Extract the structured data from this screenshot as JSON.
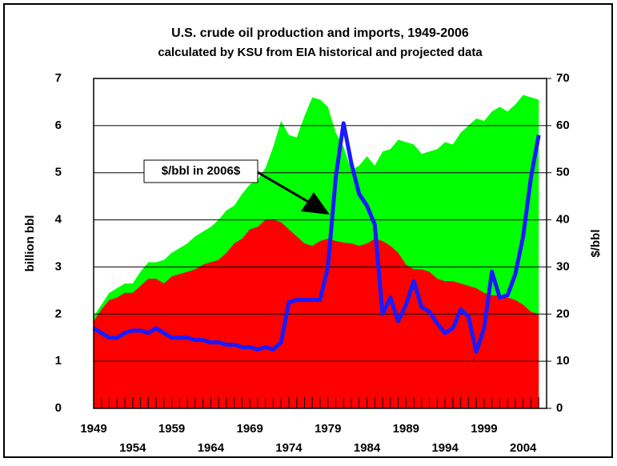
{
  "chart_data": {
    "type": "stacked-area-line",
    "title": "U.S. crude oil production and imports, 1949-2006",
    "subtitle": "calculated by KSU from EIA historical and projected data",
    "y_label": "billion bbl",
    "y2_label": "$/bbl",
    "annotation": "$/bbl in 2006$",
    "x": [
      1949,
      1950,
      1951,
      1952,
      1953,
      1954,
      1955,
      1956,
      1957,
      1958,
      1959,
      1960,
      1961,
      1962,
      1963,
      1964,
      1965,
      1966,
      1967,
      1968,
      1969,
      1970,
      1971,
      1972,
      1973,
      1974,
      1975,
      1976,
      1977,
      1978,
      1979,
      1980,
      1981,
      1982,
      1983,
      1984,
      1985,
      1986,
      1987,
      1988,
      1989,
      1990,
      1991,
      1992,
      1993,
      1994,
      1995,
      1996,
      1997,
      1998,
      1999,
      2000,
      2001,
      2002,
      2003,
      2004,
      2005,
      2006
    ],
    "xlim": [
      1949,
      2007
    ],
    "xticks": [
      1949,
      1954,
      1959,
      1964,
      1969,
      1974,
      1979,
      1984,
      1989,
      1994,
      1999,
      2004
    ],
    "ylim": [
      0,
      7
    ],
    "yticks": [
      0,
      1,
      2,
      3,
      4,
      5,
      6,
      7
    ],
    "y2lim": [
      0,
      70
    ],
    "y2ticks": [
      0,
      10,
      20,
      30,
      40,
      50,
      60,
      70
    ],
    "grid": true,
    "series": [
      {
        "color": "#ff0000",
        "stack": true,
        "values": [
          1.85,
          2.1,
          2.3,
          2.35,
          2.45,
          2.45,
          2.6,
          2.75,
          2.75,
          2.65,
          2.8,
          2.85,
          2.9,
          2.95,
          3.05,
          3.1,
          3.15,
          3.3,
          3.5,
          3.6,
          3.8,
          3.85,
          4.0,
          4.0,
          3.95,
          3.8,
          3.65,
          3.5,
          3.45,
          3.55,
          3.6,
          3.55,
          3.52,
          3.5,
          3.45,
          3.5,
          3.6,
          3.55,
          3.45,
          3.3,
          3.05,
          2.95,
          2.95,
          2.9,
          2.75,
          2.7,
          2.7,
          2.65,
          2.6,
          2.55,
          2.45,
          2.4,
          2.4,
          2.35,
          2.3,
          2.2,
          2.05,
          2.0
        ]
      },
      {
        "color": "#00ff00",
        "stack": true,
        "values": [
          0.1,
          0.1,
          0.15,
          0.2,
          0.2,
          0.2,
          0.3,
          0.35,
          0.35,
          0.5,
          0.5,
          0.55,
          0.6,
          0.7,
          0.7,
          0.75,
          0.85,
          0.9,
          0.8,
          0.95,
          0.95,
          1.0,
          1.1,
          1.55,
          2.15,
          2.0,
          2.1,
          2.7,
          3.15,
          3.0,
          2.8,
          2.3,
          2.03,
          1.55,
          1.7,
          1.85,
          1.55,
          1.9,
          2.05,
          2.4,
          2.6,
          2.65,
          2.45,
          2.55,
          2.75,
          2.95,
          2.9,
          3.2,
          3.4,
          3.6,
          3.65,
          3.9,
          4.0,
          3.95,
          4.15,
          4.45,
          4.55,
          4.55
        ]
      },
      {
        "color": "#1a1aff",
        "axis": "y2",
        "values": [
          17,
          16,
          15,
          15,
          16,
          16.5,
          16.5,
          16,
          17,
          16,
          15,
          15,
          15,
          14.5,
          14.5,
          14,
          14,
          13.5,
          13.5,
          13,
          13,
          12.5,
          13,
          12.5,
          14,
          22.5,
          23,
          23,
          23,
          23,
          30,
          49,
          60.5,
          52,
          45.5,
          43,
          39,
          20,
          23.5,
          18.5,
          22,
          27,
          21.5,
          20.5,
          18,
          16,
          17,
          21,
          19.5,
          12,
          17,
          29,
          23.5,
          24,
          28.5,
          36.5,
          49,
          58
        ]
      }
    ]
  }
}
